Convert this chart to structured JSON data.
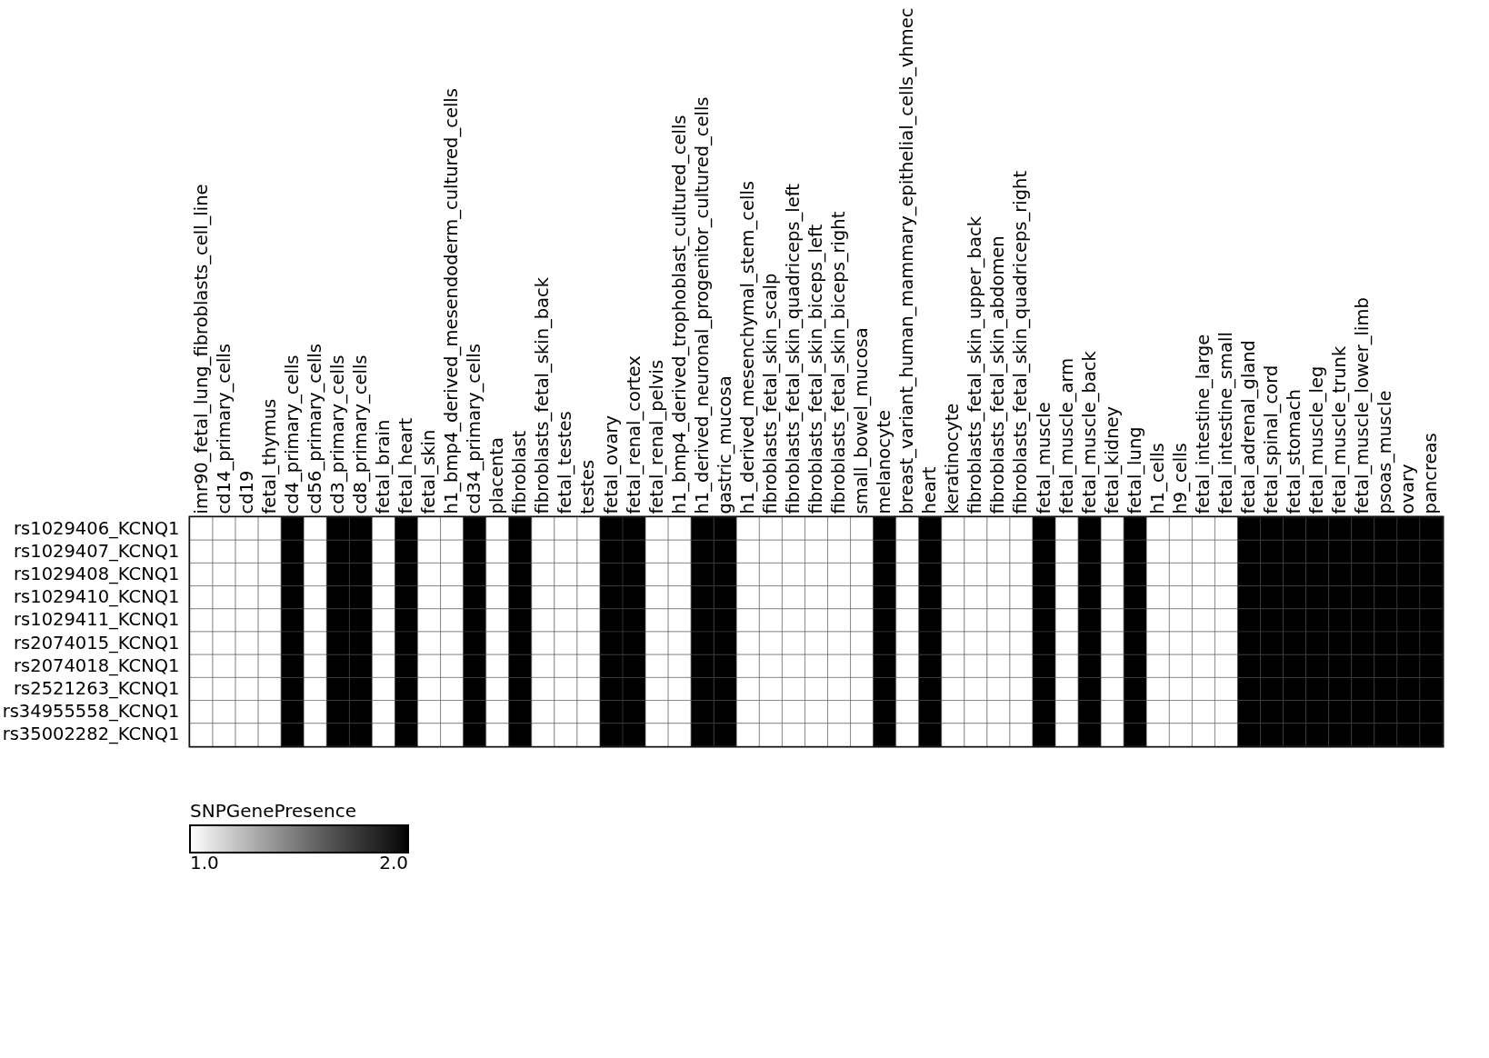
{
  "chart_data": {
    "type": "heatmap",
    "clabel": "SNPGenePresence",
    "clim": [
      1,
      2
    ],
    "categories": [
      "imr90_fetal_lung_fibroblasts_cell_line",
      "cd14_primary_cells",
      "cd19",
      "fetal_thymus",
      "cd4_primary_cells",
      "cd56_primary_cells",
      "cd3_primary_cells",
      "cd8_primary_cells",
      "fetal_brain",
      "fetal_heart",
      "fetal_skin",
      "h1_bmp4_derived_mesendoderm_cultured_cells",
      "cd34_primary_cells",
      "placenta",
      "fibroblast",
      "fibroblasts_fetal_skin_back",
      "fetal_testes",
      "testes",
      "fetal_ovary",
      "fetal_renal_cortex",
      "fetal_renal_pelvis",
      "h1_bmp4_derived_trophoblast_cultured_cells",
      "h1_derived_neuronal_progenitor_cultured_cells",
      "gastric_mucosa",
      "h1_derived_mesenchymal_stem_cells",
      "fibroblasts_fetal_skin_scalp",
      "fibroblasts_fetal_skin_quadriceps_left",
      "fibroblasts_fetal_skin_biceps_left",
      "fibroblasts_fetal_skin_biceps_right",
      "small_bowel_mucosa",
      "melanocyte",
      "breast_variant_human_mammary_epithelial_cells_vhmec",
      "heart",
      "keratinocyte",
      "fibroblasts_fetal_skin_upper_back",
      "fibroblasts_fetal_skin_abdomen",
      "fibroblasts_fetal_skin_quadriceps_right",
      "fetal_muscle",
      "fetal_muscle_arm",
      "fetal_muscle_back",
      "fetal_kidney",
      "fetal_lung",
      "h1_cells",
      "h9_cells",
      "fetal_intestine_large",
      "fetal_intestine_small",
      "fetal_adrenal_gland",
      "fetal_spinal_cord",
      "fetal_stomach",
      "fetal_muscle_leg",
      "fetal_muscle_trunk",
      "fetal_muscle_lower_limb",
      "psoas_muscle",
      "ovary",
      "pancreas"
    ],
    "y_categories": [
      "rs1029406_KCNQ1",
      "rs1029407_KCNQ1",
      "rs1029408_KCNQ1",
      "rs1029410_KCNQ1",
      "rs1029411_KCNQ1",
      "rs2074015_KCNQ1",
      "rs2074018_KCNQ1",
      "rs2521263_KCNQ1",
      "rs34955558_KCNQ1",
      "rs35002282_KCNQ1"
    ],
    "cells": [
      [
        1,
        1,
        1,
        1,
        2,
        1,
        2,
        2,
        1,
        2,
        1,
        1,
        2,
        1,
        2,
        1,
        1,
        1,
        2,
        2,
        1,
        1,
        2,
        2,
        1,
        1,
        1,
        1,
        1,
        1,
        2,
        1,
        2,
        1,
        1,
        1,
        1,
        2,
        1,
        2,
        1,
        2,
        1,
        1,
        1,
        1,
        2,
        2,
        2,
        2,
        2,
        2,
        2,
        2,
        2
      ],
      [
        1,
        1,
        1,
        1,
        2,
        1,
        2,
        2,
        1,
        2,
        1,
        1,
        2,
        1,
        2,
        1,
        1,
        1,
        2,
        2,
        1,
        1,
        2,
        2,
        1,
        1,
        1,
        1,
        1,
        1,
        2,
        1,
        2,
        1,
        1,
        1,
        1,
        2,
        1,
        2,
        1,
        2,
        1,
        1,
        1,
        1,
        2,
        2,
        2,
        2,
        2,
        2,
        2,
        2,
        2
      ],
      [
        1,
        1,
        1,
        1,
        2,
        1,
        2,
        2,
        1,
        2,
        1,
        1,
        2,
        1,
        2,
        1,
        1,
        1,
        2,
        2,
        1,
        1,
        2,
        2,
        1,
        1,
        1,
        1,
        1,
        1,
        2,
        1,
        2,
        1,
        1,
        1,
        1,
        2,
        1,
        2,
        1,
        2,
        1,
        1,
        1,
        1,
        2,
        2,
        2,
        2,
        2,
        2,
        2,
        2,
        2
      ],
      [
        1,
        1,
        1,
        1,
        2,
        1,
        2,
        2,
        1,
        2,
        1,
        1,
        2,
        1,
        2,
        1,
        1,
        1,
        2,
        2,
        1,
        1,
        2,
        2,
        1,
        1,
        1,
        1,
        1,
        1,
        2,
        1,
        2,
        1,
        1,
        1,
        1,
        2,
        1,
        2,
        1,
        2,
        1,
        1,
        1,
        1,
        2,
        2,
        2,
        2,
        2,
        2,
        2,
        2,
        2
      ],
      [
        1,
        1,
        1,
        1,
        2,
        1,
        2,
        2,
        1,
        2,
        1,
        1,
        2,
        1,
        2,
        1,
        1,
        1,
        2,
        2,
        1,
        1,
        2,
        2,
        1,
        1,
        1,
        1,
        1,
        1,
        2,
        1,
        2,
        1,
        1,
        1,
        1,
        2,
        1,
        2,
        1,
        2,
        1,
        1,
        1,
        1,
        2,
        2,
        2,
        2,
        2,
        2,
        2,
        2,
        2
      ],
      [
        1,
        1,
        1,
        1,
        2,
        1,
        2,
        2,
        1,
        2,
        1,
        1,
        2,
        1,
        2,
        1,
        1,
        1,
        2,
        2,
        1,
        1,
        2,
        2,
        1,
        1,
        1,
        1,
        1,
        1,
        2,
        1,
        2,
        1,
        1,
        1,
        1,
        2,
        1,
        2,
        1,
        2,
        1,
        1,
        1,
        1,
        2,
        2,
        2,
        2,
        2,
        2,
        2,
        2,
        2
      ],
      [
        1,
        1,
        1,
        1,
        2,
        1,
        2,
        2,
        1,
        2,
        1,
        1,
        2,
        1,
        2,
        1,
        1,
        1,
        2,
        2,
        1,
        1,
        2,
        2,
        1,
        1,
        1,
        1,
        1,
        1,
        2,
        1,
        2,
        1,
        1,
        1,
        1,
        2,
        1,
        2,
        1,
        2,
        1,
        1,
        1,
        1,
        2,
        2,
        2,
        2,
        2,
        2,
        2,
        2,
        2
      ],
      [
        1,
        1,
        1,
        1,
        2,
        1,
        2,
        2,
        1,
        2,
        1,
        1,
        2,
        1,
        2,
        1,
        1,
        1,
        2,
        2,
        1,
        1,
        2,
        2,
        1,
        1,
        1,
        1,
        1,
        1,
        2,
        1,
        2,
        1,
        1,
        1,
        1,
        2,
        1,
        2,
        1,
        2,
        1,
        1,
        1,
        1,
        2,
        2,
        2,
        2,
        2,
        2,
        2,
        2,
        2
      ],
      [
        1,
        1,
        1,
        1,
        2,
        1,
        2,
        2,
        1,
        2,
        1,
        1,
        2,
        1,
        2,
        1,
        1,
        1,
        2,
        2,
        1,
        1,
        2,
        2,
        1,
        1,
        1,
        1,
        1,
        1,
        2,
        1,
        2,
        1,
        1,
        1,
        1,
        2,
        1,
        2,
        1,
        2,
        1,
        1,
        1,
        1,
        2,
        2,
        2,
        2,
        2,
        2,
        2,
        2,
        2
      ],
      [
        1,
        1,
        1,
        1,
        2,
        1,
        2,
        2,
        1,
        2,
        1,
        1,
        2,
        1,
        2,
        1,
        1,
        1,
        2,
        2,
        1,
        1,
        2,
        2,
        1,
        1,
        1,
        1,
        1,
        1,
        2,
        1,
        2,
        1,
        1,
        1,
        1,
        2,
        1,
        2,
        1,
        2,
        1,
        1,
        1,
        1,
        2,
        2,
        2,
        2,
        2,
        2,
        2,
        2,
        2
      ]
    ],
    "cticks": [
      {
        "value": 1,
        "label": "1.0"
      },
      {
        "value": 2,
        "label": "2.0"
      }
    ],
    "colors": [
      "#ffffff",
      "#000000"
    ]
  }
}
